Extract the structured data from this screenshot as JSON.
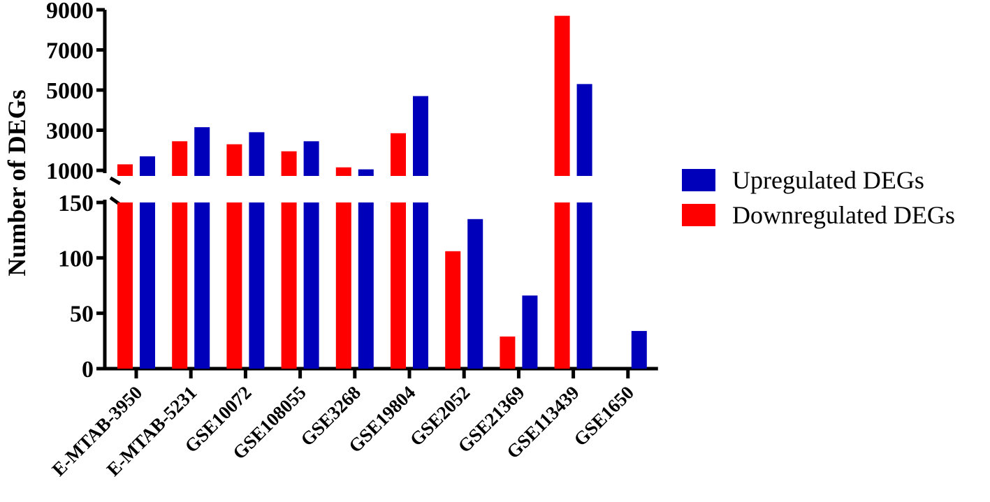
{
  "chart_data": {
    "type": "bar",
    "ylabel": "Number of DEGs",
    "xlabel": "",
    "categories": [
      "E-MTAB-3950",
      "E-MTAB-5231",
      "GSE10072",
      "GSE108055",
      "GSE3268",
      "GSE19804",
      "GSE2052",
      "GSE21369",
      "GSE113439",
      "GSE1650"
    ],
    "series": [
      {
        "name": "Downregulated DEGs",
        "color": "#ff0000",
        "values": [
          1300,
          2450,
          2300,
          1950,
          1150,
          2850,
          106,
          29,
          8700,
          0
        ]
      },
      {
        "name": "Upregulated DEGs",
        "color": "#0000bb",
        "values": [
          1700,
          3150,
          2900,
          2450,
          1050,
          4700,
          135,
          66,
          5300,
          34
        ]
      }
    ],
    "axis_break": {
      "lower_range": [
        0,
        150
      ],
      "upper_range": [
        1000,
        9000
      ]
    },
    "y_ticks_lower": [
      "0",
      "50",
      "100",
      "150"
    ],
    "y_ticks_upper": [
      "1000",
      "3000",
      "5000",
      "7000",
      "9000"
    ],
    "legend": {
      "placement": "right",
      "entries": [
        "Upregulated DEGs",
        "Downregulated DEGs"
      ]
    },
    "grid": false
  }
}
